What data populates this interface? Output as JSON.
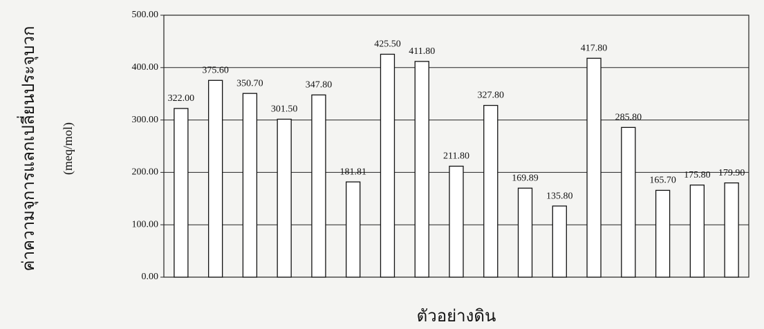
{
  "chart_data": {
    "type": "bar",
    "y_label": "ค่าความจุการแลกเปลี่ยนประจุบวก",
    "y_unit": "(meq/mol)",
    "x_label": "ตัวอย่างดิน",
    "values": [
      322,
      375.6,
      350.7,
      301.5,
      347.8,
      181.81,
      425.5,
      411.8,
      211.8,
      327.8,
      169.89,
      135.8,
      417.8,
      285.8,
      165.7,
      175.8,
      179.9
    ],
    "value_labels": [
      "322.00",
      "375.60",
      "350.70",
      "301.50",
      "347.80",
      "181.81",
      "425.50",
      "411.80",
      "211.80",
      "327.80",
      "169.89",
      "135.80",
      "417.80",
      "285.80",
      "165.70",
      "175.80",
      "179.90"
    ],
    "color": "#ffffff",
    "ylim": [
      0,
      500
    ],
    "yticks": [
      {
        "value": 0,
        "label": "0.00"
      },
      {
        "value": 100,
        "label": "100.00"
      },
      {
        "value": 200,
        "label": "200.00"
      },
      {
        "value": 300,
        "label": "300.00"
      },
      {
        "value": 400,
        "label": "400.00"
      },
      {
        "value": 500,
        "label": "500.00"
      }
    ],
    "grid": true
  }
}
